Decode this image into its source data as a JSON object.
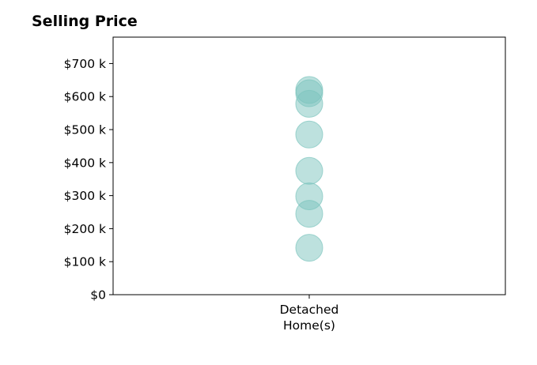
{
  "chart_data": {
    "type": "scatter",
    "title": "Selling Price",
    "xlabel": "",
    "ylabel": "",
    "categories": [
      "Detached\nHome(s)"
    ],
    "y_ticks": [
      0,
      100000,
      200000,
      300000,
      400000,
      500000,
      600000,
      700000
    ],
    "y_tick_labels": [
      "$0",
      "$100 k",
      "$200 k",
      "$300 k",
      "$400 k",
      "$500 k",
      "$600 k",
      "$700 k"
    ],
    "ylim": [
      0,
      780000
    ],
    "series": [
      {
        "category": "Detached\nHome(s)",
        "values": [
          620000,
          610000,
          578000,
          485000,
          375000,
          298000,
          245000,
          142000
        ]
      }
    ],
    "marker_color": "#7cc4be",
    "grid": false
  }
}
